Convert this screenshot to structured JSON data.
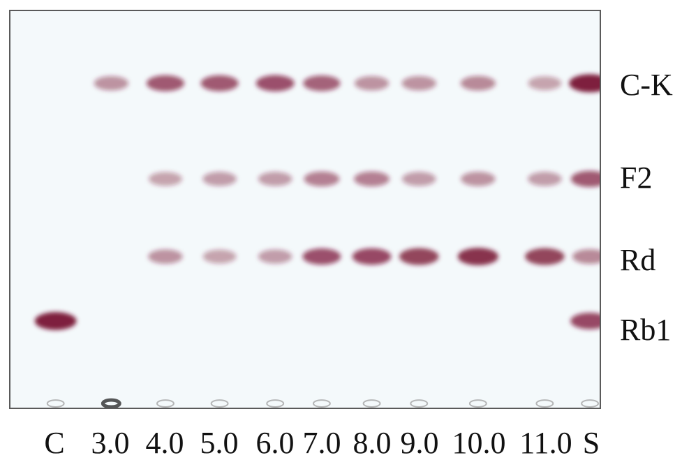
{
  "lanes": [
    "C",
    "3.0",
    "4.0",
    "5.0",
    "6.0",
    "7.0",
    "8.0",
    "9.0",
    "10.0",
    "11.0",
    "S"
  ],
  "bands": [
    "C-K",
    "F2",
    "Rd",
    "Rb1"
  ],
  "spot_color": "#7a1535",
  "plate_color": "#f4f9fb",
  "intensity": {
    "C-K": [
      0,
      0.35,
      0.65,
      0.65,
      0.7,
      0.6,
      0.35,
      0.35,
      0.4,
      0.25,
      1.0
    ],
    "F2": [
      0,
      0,
      0.25,
      0.3,
      0.3,
      0.45,
      0.45,
      0.3,
      0.35,
      0.3,
      0.65
    ],
    "Rd": [
      0,
      0,
      0.35,
      0.25,
      0.3,
      0.7,
      0.75,
      0.8,
      0.9,
      0.8,
      0.4
    ],
    "Rb1": [
      1.0,
      0,
      0,
      0,
      0,
      0,
      0,
      0,
      0,
      0,
      0.75
    ]
  }
}
